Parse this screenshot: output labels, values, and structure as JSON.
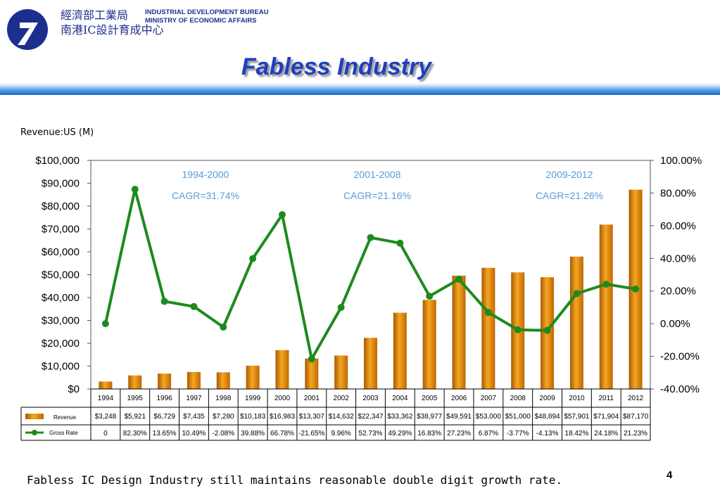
{
  "header": {
    "org_zh_line1": "經濟部工業局",
    "org_zh_line2": "南港IC設計育成中心",
    "org_en_line1": "INDUSTRIAL DEVELOPMENT BUREAU",
    "org_en_line2": "MINISTRY OF ECONOMIC AFFAIRS",
    "logo_icon": "idb-logo-icon",
    "brand_color": "#1c2f8f"
  },
  "title": "Fabless Industry",
  "revenue_unit": "Revenue:US (M)",
  "footnote": "Fabless IC Design Industry still maintains reasonable double digit growth rate.",
  "page_number": "4",
  "chart_data": {
    "type": "bar",
    "categories": [
      "1994",
      "1995",
      "1996",
      "1997",
      "1998",
      "1999",
      "2000",
      "2001",
      "2002",
      "2003",
      "2004",
      "2005",
      "2006",
      "2007",
      "2008",
      "2009",
      "2010",
      "2011",
      "2012"
    ],
    "series": [
      {
        "name": "Revenue",
        "type": "bar",
        "axis": "left",
        "color": "#e08a10",
        "values": [
          3248,
          5921,
          6729,
          7435,
          7280,
          10183,
          16983,
          13307,
          14632,
          22347,
          33362,
          38977,
          49591,
          53000,
          51000,
          48894,
          57901,
          71904,
          87170
        ],
        "labels": [
          "$3,248",
          "$5,921",
          "$6,729",
          "$7,435",
          "$7,280",
          "$10,183",
          "$16,983",
          "$13,307",
          "$14,632",
          "$22,347",
          "$33,362",
          "$38,977",
          "$49,591",
          "$53,000",
          "$51,000",
          "$48,894",
          "$57,901",
          "$71,904",
          "$87,170"
        ]
      },
      {
        "name": "Gross Rate",
        "type": "line",
        "axis": "right",
        "color": "#1e8a1e",
        "values": [
          0,
          82.3,
          13.65,
          10.49,
          -2.08,
          39.88,
          66.78,
          -21.65,
          9.96,
          52.73,
          49.29,
          16.83,
          27.23,
          6.87,
          -3.77,
          -4.13,
          18.42,
          24.18,
          21.23
        ],
        "labels": [
          "0",
          "82.30%",
          "13.65%",
          "10.49%",
          "-2.08%",
          "39.88%",
          "66.78%",
          "-21.65%",
          "9.96%",
          "52.73%",
          "49.29%",
          "16.83%",
          "27.23%",
          "6.87%",
          "-3.77%",
          "-4.13%",
          "18.42%",
          "24.18%",
          "21.23%"
        ]
      }
    ],
    "y_left": {
      "ylim": [
        0,
        100000
      ],
      "ticks": [
        "$100,000",
        "$90,000",
        "$80,000",
        "$70,000",
        "$60,000",
        "$50,000",
        "$40,000",
        "$30,000",
        "$20,000",
        "$10,000",
        "$0"
      ]
    },
    "y_right": {
      "ylim": [
        -40,
        100
      ],
      "ticks": [
        "100.00%",
        "80.00%",
        "60.00%",
        "40.00%",
        "20.00%",
        "0.00%",
        "-20.00%",
        "-40.00%"
      ]
    },
    "annotations": [
      {
        "period": "1994-2000",
        "cagr": "CAGR=31.74%"
      },
      {
        "period": "2001-2008",
        "cagr": "CAGR=21.16%"
      },
      {
        "period": "2009-2012",
        "cagr": "CAGR=21.26%"
      }
    ],
    "annotation_color": "#5b9bd5",
    "grid": false,
    "legend": "data-table"
  }
}
